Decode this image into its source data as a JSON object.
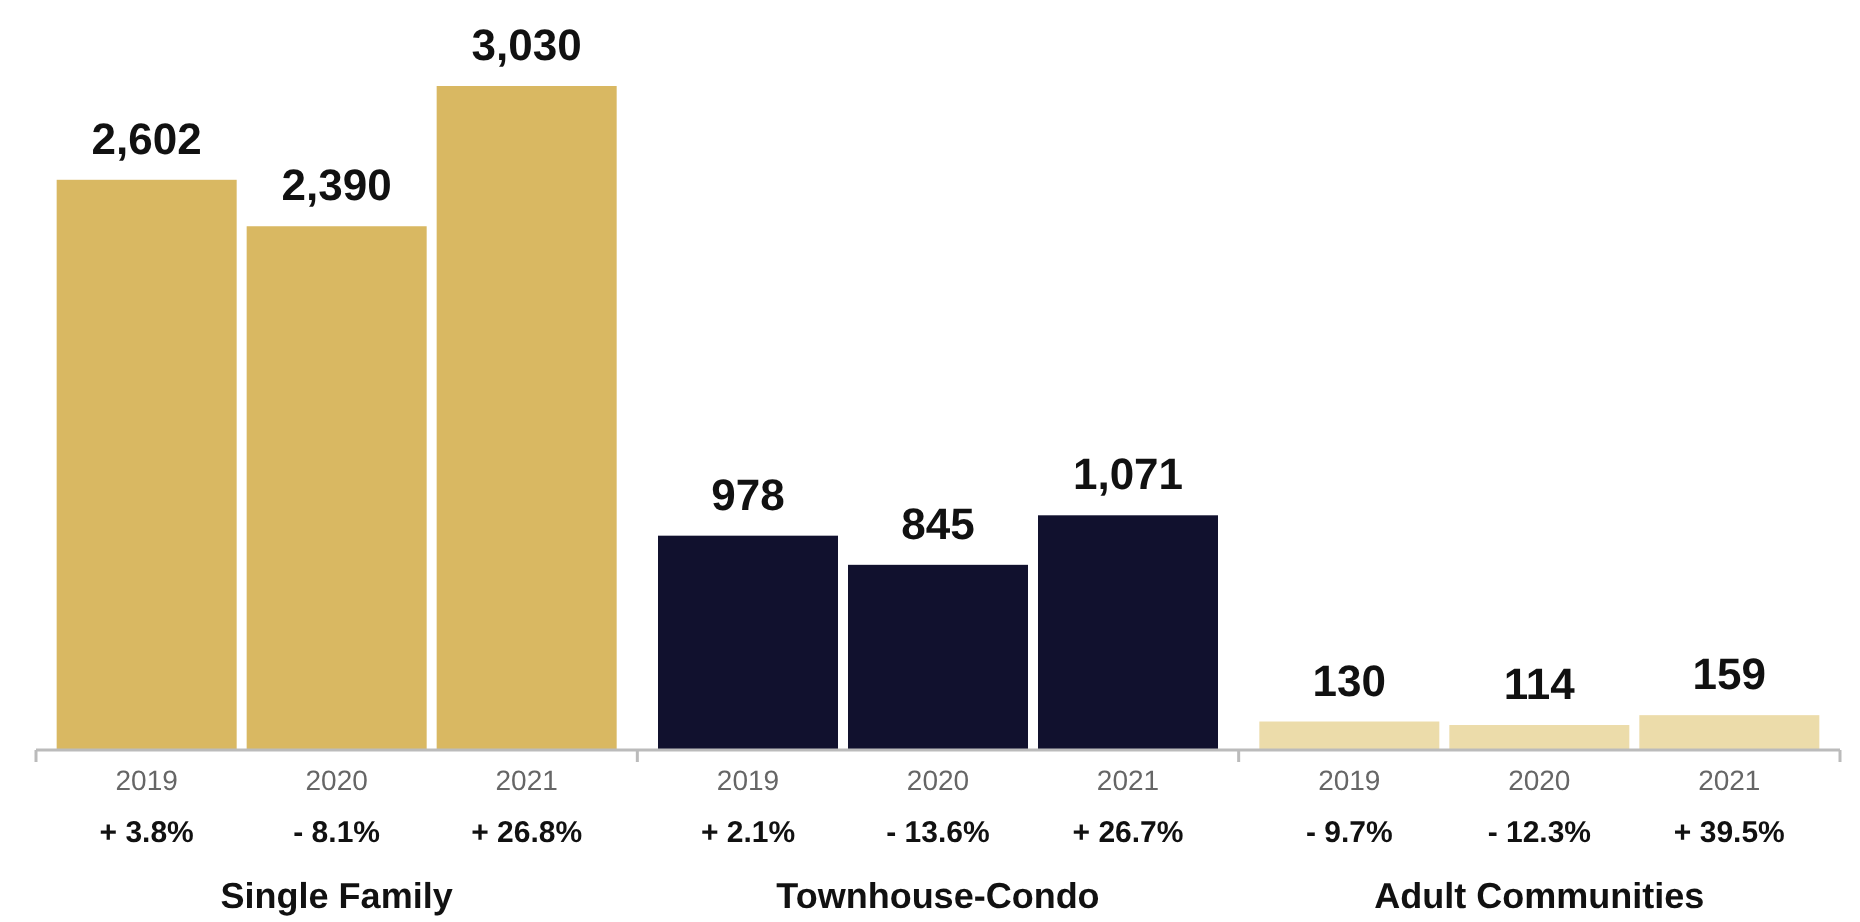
{
  "chart_data": {
    "type": "bar",
    "categories": [
      "2019",
      "2020",
      "2021",
      "2019",
      "2020",
      "2021",
      "2019",
      "2020",
      "2021"
    ],
    "values": [
      2602,
      2390,
      3030,
      978,
      845,
      1071,
      130,
      114,
      159
    ],
    "colors": [
      "#d9b862",
      "#d9b862",
      "#d9b862",
      "#11112e",
      "#11112e",
      "#11112e",
      "#ecdcaa",
      "#ecdcaa",
      "#ecdcaa"
    ],
    "value_labels": [
      "2,602",
      "2,390",
      "3,030",
      "978",
      "845",
      "1,071",
      "130",
      "114",
      "159"
    ],
    "annotations": [
      "+ 3.8%",
      "- 8.1%",
      "+ 26.8%",
      "+ 2.1%",
      "- 13.6%",
      "+ 26.7%",
      "- 9.7%",
      "- 12.3%",
      "+ 39.5%",
      "Single Family",
      "Townhouse-Condo",
      "Adult Communities"
    ]
  }
}
